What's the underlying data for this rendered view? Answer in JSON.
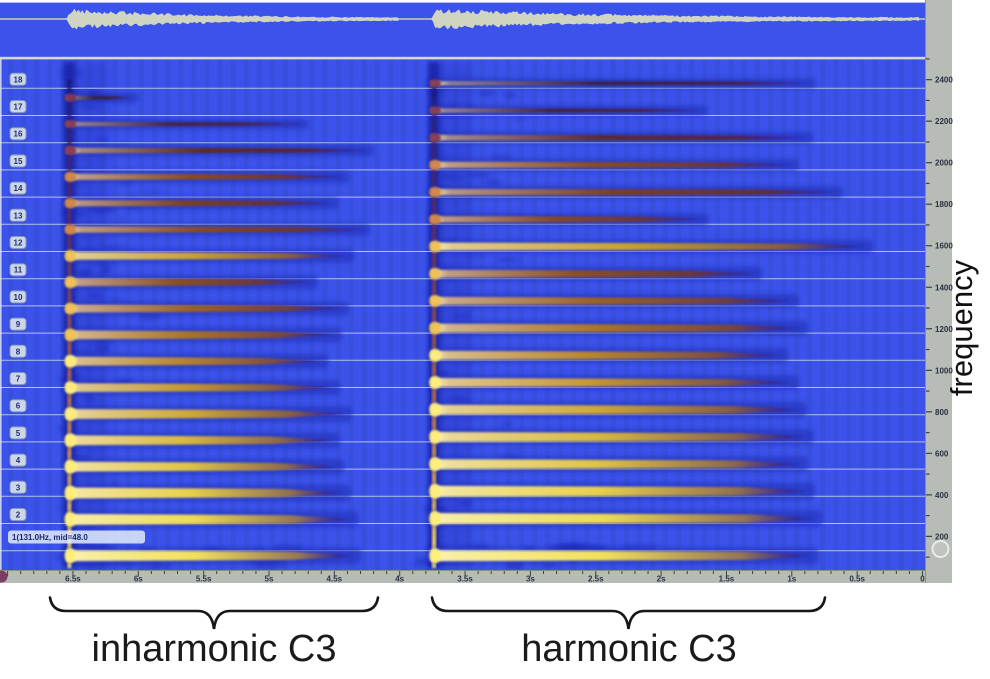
{
  "app": {
    "description": "sinusoidal partial analysis display with two spectrograms"
  },
  "annotations": {
    "left": "inharmonic C3",
    "right": "harmonic C3"
  },
  "waveform_panel": {
    "bursts": [
      {
        "start_s": 6.55,
        "end_s": 4.0,
        "peak_amp": 10.5
      },
      {
        "start_s": 3.76,
        "end_s": 0.02,
        "peak_amp": 10.5
      }
    ]
  },
  "spectrogram": {
    "f0_hz": 131.0,
    "midi_note": 48.0,
    "selected_partial_label": "1(131.0Hz, mid=48.0",
    "axis_title": "frequency",
    "partial_badges": [
      "18",
      "17",
      "16",
      "15",
      "14",
      "13",
      "12",
      "11",
      "10",
      "9",
      "8",
      "7",
      "6",
      "5",
      "4",
      "3",
      "2"
    ],
    "freq_tick_labels": [
      "2400",
      "2200",
      "2000",
      "1800",
      "1600",
      "1400",
      "1200",
      "1000",
      "800",
      "600",
      "400",
      "200"
    ],
    "freq_tick_values": [
      2400,
      2200,
      2000,
      1800,
      1600,
      1400,
      1200,
      1000,
      800,
      600,
      400,
      200
    ],
    "minor_tick_hz": 100,
    "partial_colors": [
      "#f2e05c",
      "#eeda54",
      "#e8d04c",
      "#e0c446",
      "#d8b840",
      "#cea838",
      "#c49832",
      "#b8862e",
      "#aa742a",
      "#9c6226",
      "#8c5022",
      "#c9a232",
      "#8a4a20",
      "#7c4020",
      "#8c4c1e",
      "#5e2c1c",
      "#462038",
      "#35203f"
    ],
    "segments": [
      {
        "label": "inharmonic C3",
        "onset_s": 6.55,
        "partial_durations_s": [
          2.18,
          2.16,
          2.1,
          2.05,
          2.02,
          2.11,
          2.02,
          1.93,
          2.03,
          2.09,
          1.85,
          2.13,
          2.25,
          2.01,
          2.09,
          2.28,
          1.78,
          0.48
        ]
      },
      {
        "label": "harmonic C3",
        "onset_s": 3.76,
        "partial_durations_s": [
          2.89,
          2.92,
          2.86,
          2.81,
          2.85,
          2.8,
          2.74,
          2.66,
          2.81,
          2.74,
          2.46,
          3.31,
          2.05,
          3.08,
          2.74,
          2.85,
          2.04,
          2.87
        ]
      }
    ]
  },
  "time_ruler": {
    "labels": [
      "6.5s",
      "6s",
      "5.5s",
      "5s",
      "4.5s",
      "4s",
      "3.5s",
      "3s",
      "2.5s",
      "2s",
      "1.5s",
      "1s",
      "0.5s",
      "0"
    ],
    "values_s": [
      6.5,
      6.0,
      5.5,
      5.0,
      4.5,
      4.0,
      3.5,
      3.0,
      2.5,
      2.0,
      1.5,
      1.0,
      0.5,
      0
    ]
  },
  "colors": {
    "spectro_bg": "#3b53ea",
    "grid_line": "#ccd6ee",
    "ruler_bg": "#b7bcb7",
    "ruler_border": "#8a8f8a",
    "waveform_fill": "#d0d5c2",
    "waveform_line": "#c9cec0",
    "onset_dark": "#1820a0",
    "cloud": "#1b27b2",
    "halo": "#1f2bb0",
    "tail": "#2433c0",
    "badge_bg": "#ccd6ea",
    "badge_border": "#8898b8",
    "tooltip_bg": "#e2ebfa",
    "separator": "#d6dacd",
    "brace": "#161616",
    "thumb": "#7c3e68",
    "handle": "#e9ebe9"
  }
}
